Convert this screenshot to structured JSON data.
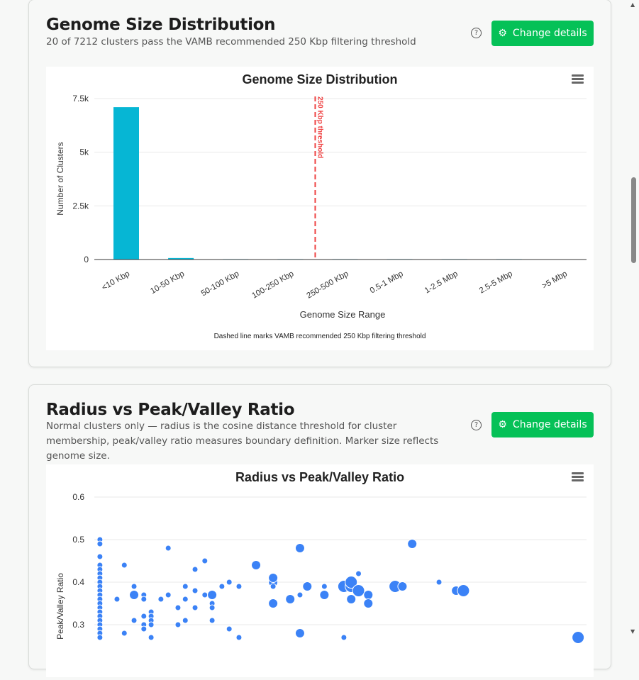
{
  "card1": {
    "title": "Genome Size Distribution",
    "subtitle": "20 of 7212 clusters pass the VAMB recommended 250 Kbp filtering threshold",
    "help_icon": "question-circle-icon",
    "button_label": "Change details",
    "button_icon": "gear-icon"
  },
  "card2": {
    "title": "Radius vs Peak/Valley Ratio",
    "subtitle": "Normal clusters only — radius is the cosine distance threshold for cluster membership, peak/valley ratio measures boundary definition. Marker size reflects genome size.",
    "help_icon": "question-circle-icon",
    "button_label": "Change details",
    "button_icon": "gear-icon"
  },
  "colors": {
    "accent": "#05c157",
    "bar": "#06b6d4",
    "threshold": "#ef4444",
    "scatter": "#3b82f6"
  },
  "chart_data": [
    {
      "type": "bar",
      "title": "Genome Size Distribution",
      "xlabel": "Genome Size Range",
      "ylabel": "Number of Clusters",
      "caption": "Dashed line marks VAMB recommended 250 Kbp filtering threshold",
      "categories": [
        "<10 Kbp",
        "10-50 Kbp",
        "50-100 Kbp",
        "100-250 Kbp",
        "250-500 Kbp",
        "0.5-1 Mbp",
        "1-2.5 Mbp",
        "2.5-5 Mbp",
        ">5 Mbp"
      ],
      "values": [
        7100,
        70,
        15,
        7,
        6,
        5,
        6,
        3,
        0
      ],
      "ylim": [
        0,
        7500
      ],
      "yticks": [
        {
          "v": 0,
          "label": "0"
        },
        {
          "v": 2500,
          "label": "2.5k"
        },
        {
          "v": 5000,
          "label": "5k"
        },
        {
          "v": 7500,
          "label": "7.5k"
        }
      ],
      "threshold": {
        "label": "250 Kbp threshold",
        "between": [
          "100-250 Kbp",
          "250-500 Kbp"
        ]
      },
      "grid": true
    },
    {
      "type": "scatter",
      "title": "Radius vs Peak/Valley Ratio",
      "ylabel": "Peak/Valley Ratio",
      "ylim": [
        0.25,
        0.6
      ],
      "xlim": [
        0,
        0.2
      ],
      "yticks": [
        "0.3",
        "0.4",
        "0.5",
        "0.6"
      ],
      "grid": true,
      "points": [
        {
          "x": 0.002,
          "y": 0.5,
          "s": 1
        },
        {
          "x": 0.002,
          "y": 0.49,
          "s": 1
        },
        {
          "x": 0.002,
          "y": 0.46,
          "s": 1
        },
        {
          "x": 0.002,
          "y": 0.44,
          "s": 1
        },
        {
          "x": 0.002,
          "y": 0.43,
          "s": 1
        },
        {
          "x": 0.002,
          "y": 0.42,
          "s": 1
        },
        {
          "x": 0.002,
          "y": 0.41,
          "s": 1
        },
        {
          "x": 0.002,
          "y": 0.4,
          "s": 1
        },
        {
          "x": 0.002,
          "y": 0.39,
          "s": 1
        },
        {
          "x": 0.002,
          "y": 0.38,
          "s": 1
        },
        {
          "x": 0.002,
          "y": 0.37,
          "s": 1
        },
        {
          "x": 0.002,
          "y": 0.36,
          "s": 1
        },
        {
          "x": 0.002,
          "y": 0.35,
          "s": 1
        },
        {
          "x": 0.002,
          "y": 0.34,
          "s": 1
        },
        {
          "x": 0.002,
          "y": 0.33,
          "s": 1
        },
        {
          "x": 0.002,
          "y": 0.32,
          "s": 1
        },
        {
          "x": 0.002,
          "y": 0.31,
          "s": 1
        },
        {
          "x": 0.002,
          "y": 0.3,
          "s": 1
        },
        {
          "x": 0.002,
          "y": 0.29,
          "s": 1
        },
        {
          "x": 0.002,
          "y": 0.28,
          "s": 1
        },
        {
          "x": 0.002,
          "y": 0.27,
          "s": 1
        },
        {
          "x": 0.009,
          "y": 0.36,
          "s": 1
        },
        {
          "x": 0.012,
          "y": 0.44,
          "s": 1
        },
        {
          "x": 0.012,
          "y": 0.28,
          "s": 1
        },
        {
          "x": 0.016,
          "y": 0.39,
          "s": 1
        },
        {
          "x": 0.016,
          "y": 0.37,
          "s": 2
        },
        {
          "x": 0.016,
          "y": 0.31,
          "s": 1
        },
        {
          "x": 0.02,
          "y": 0.37,
          "s": 1
        },
        {
          "x": 0.02,
          "y": 0.36,
          "s": 1
        },
        {
          "x": 0.02,
          "y": 0.32,
          "s": 1
        },
        {
          "x": 0.02,
          "y": 0.3,
          "s": 1
        },
        {
          "x": 0.02,
          "y": 0.29,
          "s": 1
        },
        {
          "x": 0.023,
          "y": 0.33,
          "s": 1
        },
        {
          "x": 0.023,
          "y": 0.32,
          "s": 1
        },
        {
          "x": 0.023,
          "y": 0.31,
          "s": 1
        },
        {
          "x": 0.023,
          "y": 0.3,
          "s": 1
        },
        {
          "x": 0.023,
          "y": 0.27,
          "s": 1
        },
        {
          "x": 0.027,
          "y": 0.36,
          "s": 1
        },
        {
          "x": 0.03,
          "y": 0.48,
          "s": 1
        },
        {
          "x": 0.03,
          "y": 0.37,
          "s": 1
        },
        {
          "x": 0.034,
          "y": 0.34,
          "s": 1
        },
        {
          "x": 0.034,
          "y": 0.3,
          "s": 1
        },
        {
          "x": 0.037,
          "y": 0.39,
          "s": 1
        },
        {
          "x": 0.037,
          "y": 0.36,
          "s": 1
        },
        {
          "x": 0.037,
          "y": 0.31,
          "s": 1
        },
        {
          "x": 0.041,
          "y": 0.43,
          "s": 1
        },
        {
          "x": 0.041,
          "y": 0.38,
          "s": 1
        },
        {
          "x": 0.041,
          "y": 0.34,
          "s": 1
        },
        {
          "x": 0.045,
          "y": 0.45,
          "s": 1
        },
        {
          "x": 0.045,
          "y": 0.37,
          "s": 1
        },
        {
          "x": 0.048,
          "y": 0.37,
          "s": 2
        },
        {
          "x": 0.048,
          "y": 0.35,
          "s": 1
        },
        {
          "x": 0.048,
          "y": 0.34,
          "s": 1
        },
        {
          "x": 0.048,
          "y": 0.31,
          "s": 1
        },
        {
          "x": 0.052,
          "y": 0.39,
          "s": 1
        },
        {
          "x": 0.055,
          "y": 0.4,
          "s": 1
        },
        {
          "x": 0.055,
          "y": 0.29,
          "s": 1
        },
        {
          "x": 0.059,
          "y": 0.39,
          "s": 1
        },
        {
          "x": 0.059,
          "y": 0.27,
          "s": 1
        },
        {
          "x": 0.066,
          "y": 0.44,
          "s": 2
        },
        {
          "x": 0.073,
          "y": 0.4,
          "s": 2
        },
        {
          "x": 0.073,
          "y": 0.41,
          "s": 2
        },
        {
          "x": 0.073,
          "y": 0.39,
          "s": 1
        },
        {
          "x": 0.073,
          "y": 0.35,
          "s": 2
        },
        {
          "x": 0.08,
          "y": 0.36,
          "s": 2
        },
        {
          "x": 0.084,
          "y": 0.48,
          "s": 2
        },
        {
          "x": 0.084,
          "y": 0.37,
          "s": 1
        },
        {
          "x": 0.084,
          "y": 0.28,
          "s": 2
        },
        {
          "x": 0.087,
          "y": 0.39,
          "s": 2
        },
        {
          "x": 0.094,
          "y": 0.39,
          "s": 1
        },
        {
          "x": 0.094,
          "y": 0.37,
          "s": 2
        },
        {
          "x": 0.102,
          "y": 0.39,
          "s": 3
        },
        {
          "x": 0.102,
          "y": 0.27,
          "s": 1
        },
        {
          "x": 0.105,
          "y": 0.39,
          "s": 3
        },
        {
          "x": 0.105,
          "y": 0.4,
          "s": 3
        },
        {
          "x": 0.105,
          "y": 0.36,
          "s": 2
        },
        {
          "x": 0.108,
          "y": 0.42,
          "s": 1
        },
        {
          "x": 0.108,
          "y": 0.38,
          "s": 3
        },
        {
          "x": 0.112,
          "y": 0.37,
          "s": 2
        },
        {
          "x": 0.112,
          "y": 0.35,
          "s": 2
        },
        {
          "x": 0.123,
          "y": 0.39,
          "s": 3
        },
        {
          "x": 0.126,
          "y": 0.39,
          "s": 2
        },
        {
          "x": 0.13,
          "y": 0.49,
          "s": 2
        },
        {
          "x": 0.141,
          "y": 0.4,
          "s": 1
        },
        {
          "x": 0.148,
          "y": 0.38,
          "s": 2
        },
        {
          "x": 0.151,
          "y": 0.38,
          "s": 3
        },
        {
          "x": 0.198,
          "y": 0.27,
          "s": 3
        }
      ]
    }
  ]
}
